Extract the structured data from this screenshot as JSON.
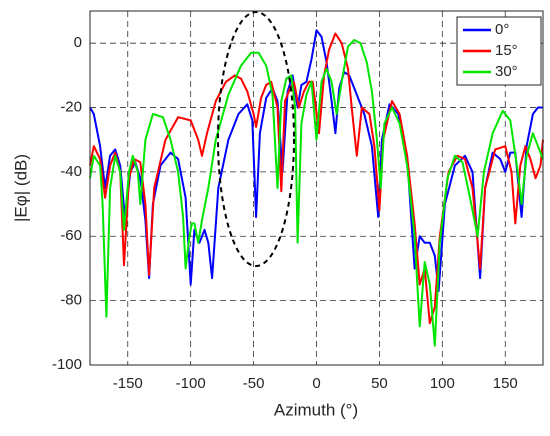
{
  "chart_data": {
    "type": "line",
    "xlabel": "Azimuth (°)",
    "ylabel": "|Eφ| (dB)",
    "xlim": [
      -180,
      180
    ],
    "xticks": [
      -150,
      -100,
      -50,
      0,
      50,
      100,
      150
    ],
    "ylim": [
      -100,
      10
    ],
    "yticks": [
      -100,
      -80,
      -60,
      -40,
      -20,
      0
    ],
    "grid": true,
    "legend": "upper right",
    "series": [
      {
        "name": "0°",
        "color": "#0000ff",
        "x": [
          -180,
          -177,
          -172,
          -168,
          -164,
          -160,
          -156,
          -152,
          -148,
          -144,
          -140,
          -136,
          -133,
          -130,
          -124,
          -116,
          -110,
          -104,
          -100,
          -97,
          -93,
          -89,
          -86,
          -83,
          -78,
          -70,
          -62,
          -55,
          -51,
          -48,
          -45,
          -40,
          -35,
          -31,
          -27,
          -23,
          -19,
          -15,
          -12,
          -8,
          -4,
          0,
          4,
          8,
          12,
          15,
          18,
          22,
          26,
          30,
          38,
          44,
          49,
          52,
          58,
          65,
          72,
          78,
          82,
          86,
          90,
          94,
          97,
          102,
          110,
          118,
          124,
          130,
          134,
          140,
          146,
          150,
          154,
          158,
          163,
          167,
          172,
          176,
          180
        ],
        "values": [
          -20,
          -22,
          -32,
          -45,
          -35,
          -33,
          -38,
          -55,
          -40,
          -37,
          -42,
          -55,
          -73,
          -50,
          -38,
          -34,
          -36,
          -48,
          -75,
          -58,
          -62,
          -58,
          -62,
          -73,
          -45,
          -30,
          -22,
          -19,
          -24,
          -54,
          -28,
          -17,
          -14,
          -18,
          -40,
          -15,
          -10,
          -20,
          -13,
          -12,
          -5,
          4,
          2,
          -6,
          -18,
          -28,
          -14,
          -9,
          -10,
          -14,
          -22,
          -32,
          -54,
          -30,
          -19,
          -22,
          -35,
          -70,
          -60,
          -62,
          -62,
          -66,
          -77,
          -50,
          -38,
          -35,
          -40,
          -73,
          -45,
          -34,
          -36,
          -40,
          -34,
          -34,
          -54,
          -32,
          -22,
          -20,
          -20
        ]
      },
      {
        "name": "15°",
        "color": "#ff0000",
        "x": [
          -180,
          -177,
          -172,
          -168,
          -164,
          -160,
          -156,
          -153,
          -149,
          -145,
          -140,
          -136,
          -133,
          -129,
          -120,
          -110,
          -100,
          -94,
          -91,
          -87,
          -80,
          -72,
          -65,
          -60,
          -55,
          -50,
          -48,
          -44,
          -40,
          -36,
          -31,
          -28,
          -25,
          -21,
          -18,
          -14,
          -10,
          -6,
          -3,
          2,
          6,
          10,
          15,
          20,
          25,
          28,
          32,
          36,
          42,
          46,
          50,
          53,
          60,
          66,
          72,
          78,
          82,
          86,
          90,
          94,
          98,
          105,
          112,
          118,
          124,
          130,
          134,
          142,
          150,
          155,
          158,
          162,
          166,
          170,
          174,
          178,
          180
        ],
        "values": [
          -38,
          -32,
          -36,
          -48,
          -38,
          -34,
          -40,
          -69,
          -42,
          -36,
          -37,
          -50,
          -72,
          -45,
          -30,
          -23,
          -24,
          -30,
          -35,
          -28,
          -18,
          -12,
          -10,
          -11,
          -15,
          -22,
          -26,
          -17,
          -13,
          -12,
          -20,
          -46,
          -18,
          -14,
          -12,
          -20,
          -15,
          -12,
          -12,
          -28,
          -10,
          -2,
          3,
          0,
          -8,
          -20,
          -35,
          -20,
          -22,
          -32,
          -52,
          -30,
          -18,
          -22,
          -35,
          -56,
          -75,
          -70,
          -87,
          -82,
          -60,
          -40,
          -35,
          -36,
          -45,
          -70,
          -45,
          -33,
          -32,
          -40,
          -56,
          -38,
          -32,
          -36,
          -42,
          -38,
          -30
        ]
      },
      {
        "name": "30°",
        "color": "#00e600",
        "x": [
          -180,
          -177,
          -172,
          -170,
          -167,
          -164,
          -160,
          -156,
          -153,
          -149,
          -146,
          -142,
          -140,
          -136,
          -130,
          -122,
          -116,
          -110,
          -106,
          -104,
          -101,
          -99,
          -97,
          -94,
          -91,
          -86,
          -80,
          -70,
          -60,
          -52,
          -46,
          -40,
          -35,
          -31,
          -28,
          -24,
          -20,
          -17,
          -15,
          -12,
          -8,
          -4,
          0,
          4,
          8,
          12,
          16,
          20,
          25,
          30,
          35,
          40,
          44,
          48,
          51,
          54,
          60,
          66,
          72,
          78,
          82,
          86,
          90,
          94,
          98,
          104,
          110,
          116,
          122,
          128,
          133,
          140,
          148,
          154,
          160,
          163,
          167,
          172,
          176,
          180
        ],
        "values": [
          -42,
          -35,
          -38,
          -50,
          -85,
          -45,
          -35,
          -40,
          -58,
          -40,
          -35,
          -40,
          -50,
          -30,
          -22,
          -23,
          -30,
          -40,
          -54,
          -70,
          -60,
          -56,
          -56,
          -62,
          -55,
          -45,
          -30,
          -16,
          -7,
          -3,
          -3,
          -7,
          -16,
          -45,
          -18,
          -11,
          -10,
          -20,
          -62,
          -25,
          -16,
          -12,
          -30,
          -12,
          -8,
          -12,
          -22,
          -12,
          -1,
          1,
          0,
          -6,
          -15,
          -30,
          -45,
          -25,
          -20,
          -25,
          -38,
          -60,
          -88,
          -68,
          -75,
          -94,
          -62,
          -42,
          -35,
          -37,
          -48,
          -60,
          -40,
          -28,
          -21,
          -24,
          -40,
          -50,
          -35,
          -28,
          -32,
          -36
        ]
      }
    ]
  }
}
